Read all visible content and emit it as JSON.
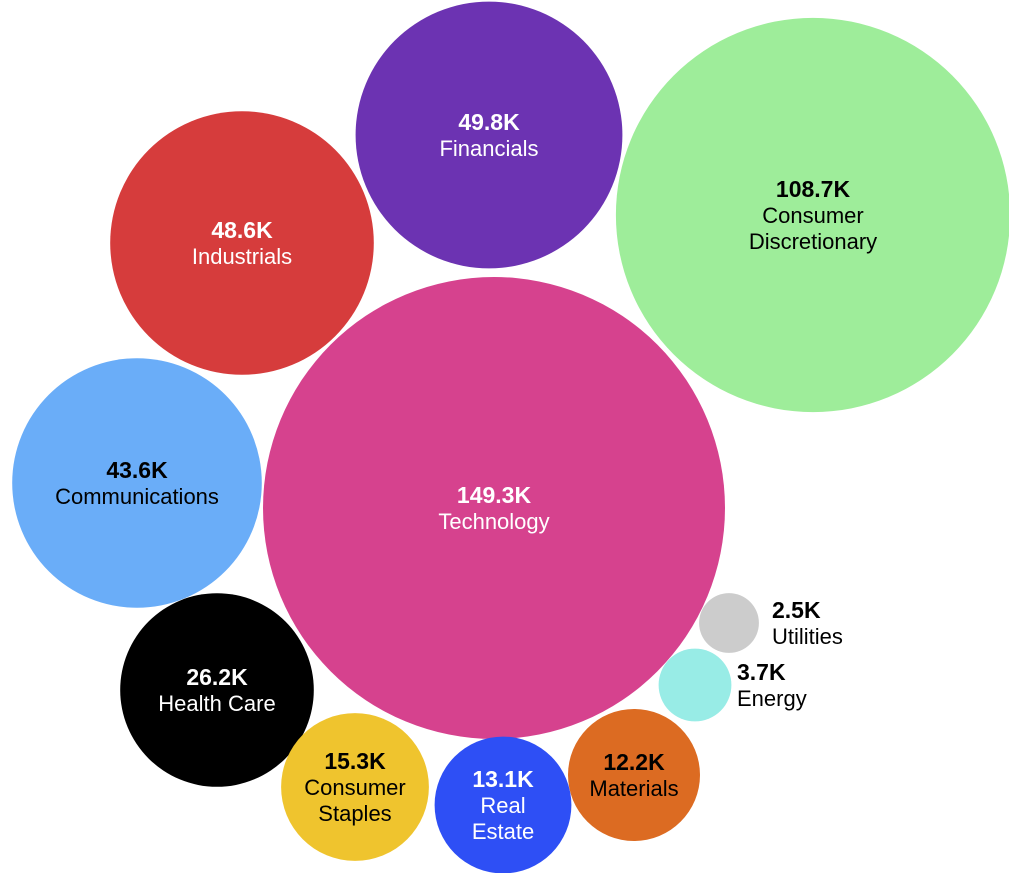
{
  "chart_data": {
    "type": "bubble",
    "title": "",
    "series": [
      {
        "name": "Technology",
        "value": 149.3,
        "label": "149.3K",
        "lines": [
          "Technology"
        ],
        "color": "#d6428e",
        "text_color": "#ffffff"
      },
      {
        "name": "Consumer Discretionary",
        "value": 108.7,
        "label": "108.7K",
        "lines": [
          "Consumer",
          "Discretionary"
        ],
        "color": "#9eed9a",
        "text_color": "#000000"
      },
      {
        "name": "Financials",
        "value": 49.8,
        "label": "49.8K",
        "lines": [
          "Financials"
        ],
        "color": "#6c33b2",
        "text_color": "#ffffff"
      },
      {
        "name": "Industrials",
        "value": 48.6,
        "label": "48.6K",
        "lines": [
          "Industrials"
        ],
        "color": "#d63c3c",
        "text_color": "#ffffff"
      },
      {
        "name": "Communications",
        "value": 43.6,
        "label": "43.6K",
        "lines": [
          "Communications"
        ],
        "color": "#6aadf8",
        "text_color": "#000000"
      },
      {
        "name": "Health Care",
        "value": 26.2,
        "label": "26.2K",
        "lines": [
          "Health Care"
        ],
        "color": "#000000",
        "text_color": "#ffffff"
      },
      {
        "name": "Consumer Staples",
        "value": 15.3,
        "label": "15.3K",
        "lines": [
          "Consumer",
          "Staples"
        ],
        "color": "#efc42e",
        "text_color": "#000000"
      },
      {
        "name": "Real Estate",
        "value": 13.1,
        "label": "13.1K",
        "lines": [
          "Real",
          "Estate"
        ],
        "color": "#2e4ff5",
        "text_color": "#ffffff"
      },
      {
        "name": "Materials",
        "value": 12.2,
        "label": "12.2K",
        "lines": [
          "Materials"
        ],
        "color": "#dc6b22",
        "text_color": "#000000"
      },
      {
        "name": "Energy",
        "value": 3.7,
        "label": "3.7K",
        "lines": [
          "Energy"
        ],
        "color": "#98ece6",
        "text_color": "#000000",
        "label_outside": true
      },
      {
        "name": "Utilities",
        "value": 2.5,
        "label": "2.5K",
        "lines": [
          "Utilities"
        ],
        "color": "#cccccc",
        "text_color": "#000000",
        "label_outside": true
      }
    ]
  }
}
